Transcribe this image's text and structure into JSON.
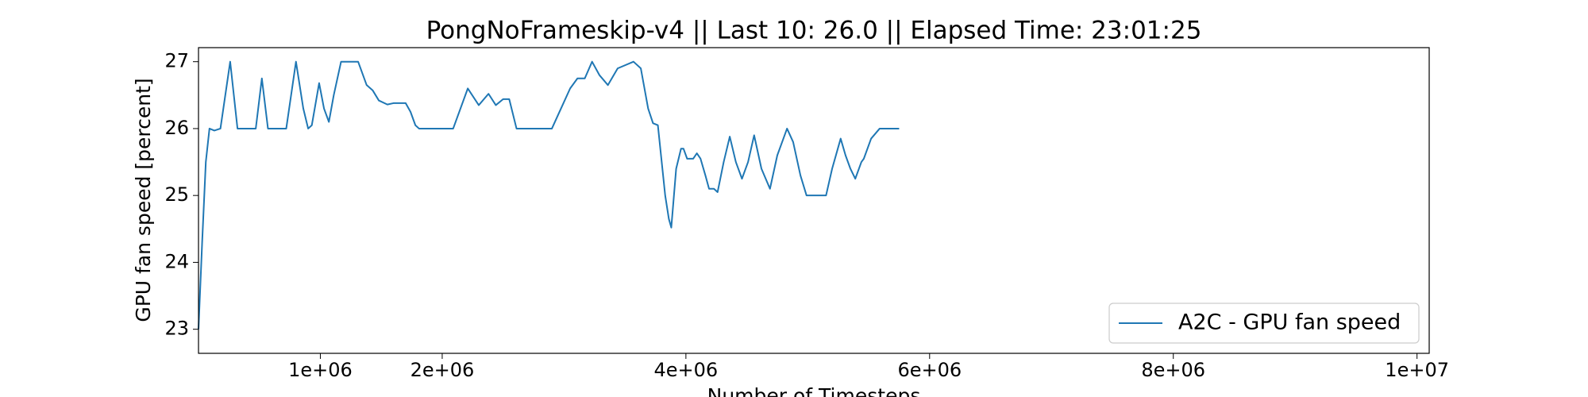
{
  "chart_data": {
    "type": "line",
    "title": "PongNoFrameskip-v4 || Last 10: 26.0 || Elapsed Time: 23:01:25",
    "x_label": "Number of Timesteps",
    "y_label": "GPU fan speed [percent]",
    "xlim": [
      0,
      10100000
    ],
    "ylim": [
      22.64,
      27.21
    ],
    "xticks": [
      {
        "value": 1000000,
        "label": "1e+06"
      },
      {
        "value": 2000000,
        "label": "2e+06"
      },
      {
        "value": 4000000,
        "label": "4e+06"
      },
      {
        "value": 6000000,
        "label": "6e+06"
      },
      {
        "value": 8000000,
        "label": "8e+06"
      },
      {
        "value": 10000000,
        "label": "1e+07"
      }
    ],
    "yticks": [
      23,
      24,
      25,
      26,
      27
    ],
    "grid": false,
    "legend": "lower right",
    "series": [
      {
        "name": "A2C - GPU fan speed",
        "color": "#1f77b4",
        "x": [
          0,
          30000,
          60000,
          90000,
          130000,
          180000,
          220000,
          260000,
          290000,
          320000,
          470000,
          520000,
          570000,
          720000,
          800000,
          860000,
          900000,
          930000,
          990000,
          1030000,
          1070000,
          1110000,
          1170000,
          1310000,
          1380000,
          1430000,
          1480000,
          1550000,
          1600000,
          1700000,
          1740000,
          1780000,
          1810000,
          2090000,
          2210000,
          2300000,
          2380000,
          2440000,
          2500000,
          2550000,
          2610000,
          2900000,
          2950000,
          3050000,
          3110000,
          3170000,
          3230000,
          3290000,
          3360000,
          3440000,
          3570000,
          3630000,
          3690000,
          3730000,
          3770000,
          3830000,
          3860000,
          3880000,
          3920000,
          3960000,
          3980000,
          4010000,
          4060000,
          4090000,
          4120000,
          4160000,
          4190000,
          4230000,
          4260000,
          4310000,
          4360000,
          4410000,
          4460000,
          4510000,
          4560000,
          4620000,
          4690000,
          4750000,
          4830000,
          4880000,
          4940000,
          4990000,
          5150000,
          5200000,
          5270000,
          5310000,
          5350000,
          5390000,
          5440000,
          5460000,
          5520000,
          5590000,
          5750000
        ],
        "values": [
          23.0,
          24.3,
          25.5,
          26.0,
          25.97,
          26.0,
          26.5,
          27.0,
          26.5,
          26.0,
          26.0,
          26.75,
          26.0,
          26.0,
          27.0,
          26.3,
          26.0,
          26.05,
          26.68,
          26.3,
          26.1,
          26.5,
          27.0,
          27.0,
          26.65,
          26.57,
          26.42,
          26.36,
          26.38,
          26.38,
          26.25,
          26.05,
          26.0,
          26.0,
          26.6,
          26.35,
          26.52,
          26.35,
          26.44,
          26.44,
          26.0,
          26.0,
          26.2,
          26.6,
          26.75,
          26.75,
          27.0,
          26.8,
          26.65,
          26.9,
          27.0,
          26.9,
          26.3,
          26.08,
          26.05,
          25.0,
          24.65,
          24.52,
          25.4,
          25.7,
          25.7,
          25.55,
          25.55,
          25.63,
          25.55,
          25.3,
          25.1,
          25.1,
          25.05,
          25.5,
          25.88,
          25.5,
          25.25,
          25.5,
          25.9,
          25.4,
          25.1,
          25.6,
          26.0,
          25.8,
          25.3,
          25.0,
          25.0,
          25.4,
          25.85,
          25.6,
          25.4,
          25.25,
          25.5,
          25.55,
          25.85,
          26.0,
          26.0
        ]
      }
    ]
  }
}
